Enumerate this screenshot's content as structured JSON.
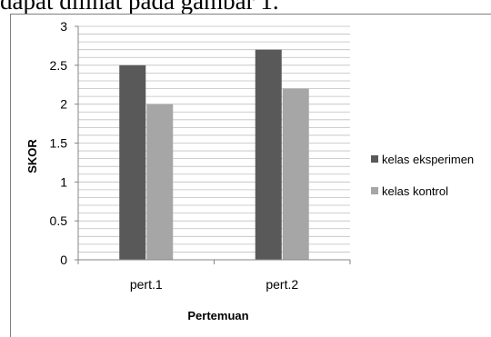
{
  "page": {
    "caption_fragment": "dapat dilihat pada gambar 1."
  },
  "colors": {
    "series_1": "#595959",
    "series_2": "#a6a6a6",
    "grid": "#bfbfbf",
    "axis": "#868686",
    "frame": "#7f7f7f"
  },
  "chart_data": {
    "type": "bar",
    "title": "",
    "xlabel": "Pertemuan",
    "ylabel": "SKOR",
    "categories": [
      "pert.1",
      "pert.2"
    ],
    "series": [
      {
        "name": "kelas eksperimen",
        "values": [
          2.5,
          2.7
        ]
      },
      {
        "name": "kelas kontrol",
        "values": [
          2.0,
          2.2
        ]
      }
    ],
    "ylim": [
      0,
      3
    ],
    "y_ticks": [
      "0",
      "0.5",
      "1",
      "1.5",
      "2",
      "2.5",
      "3"
    ],
    "y_tick_values": [
      0,
      0.5,
      1,
      1.5,
      2,
      2.5,
      3
    ],
    "minor_grid_step": 0.1,
    "grid": true,
    "legend_position": "right"
  }
}
